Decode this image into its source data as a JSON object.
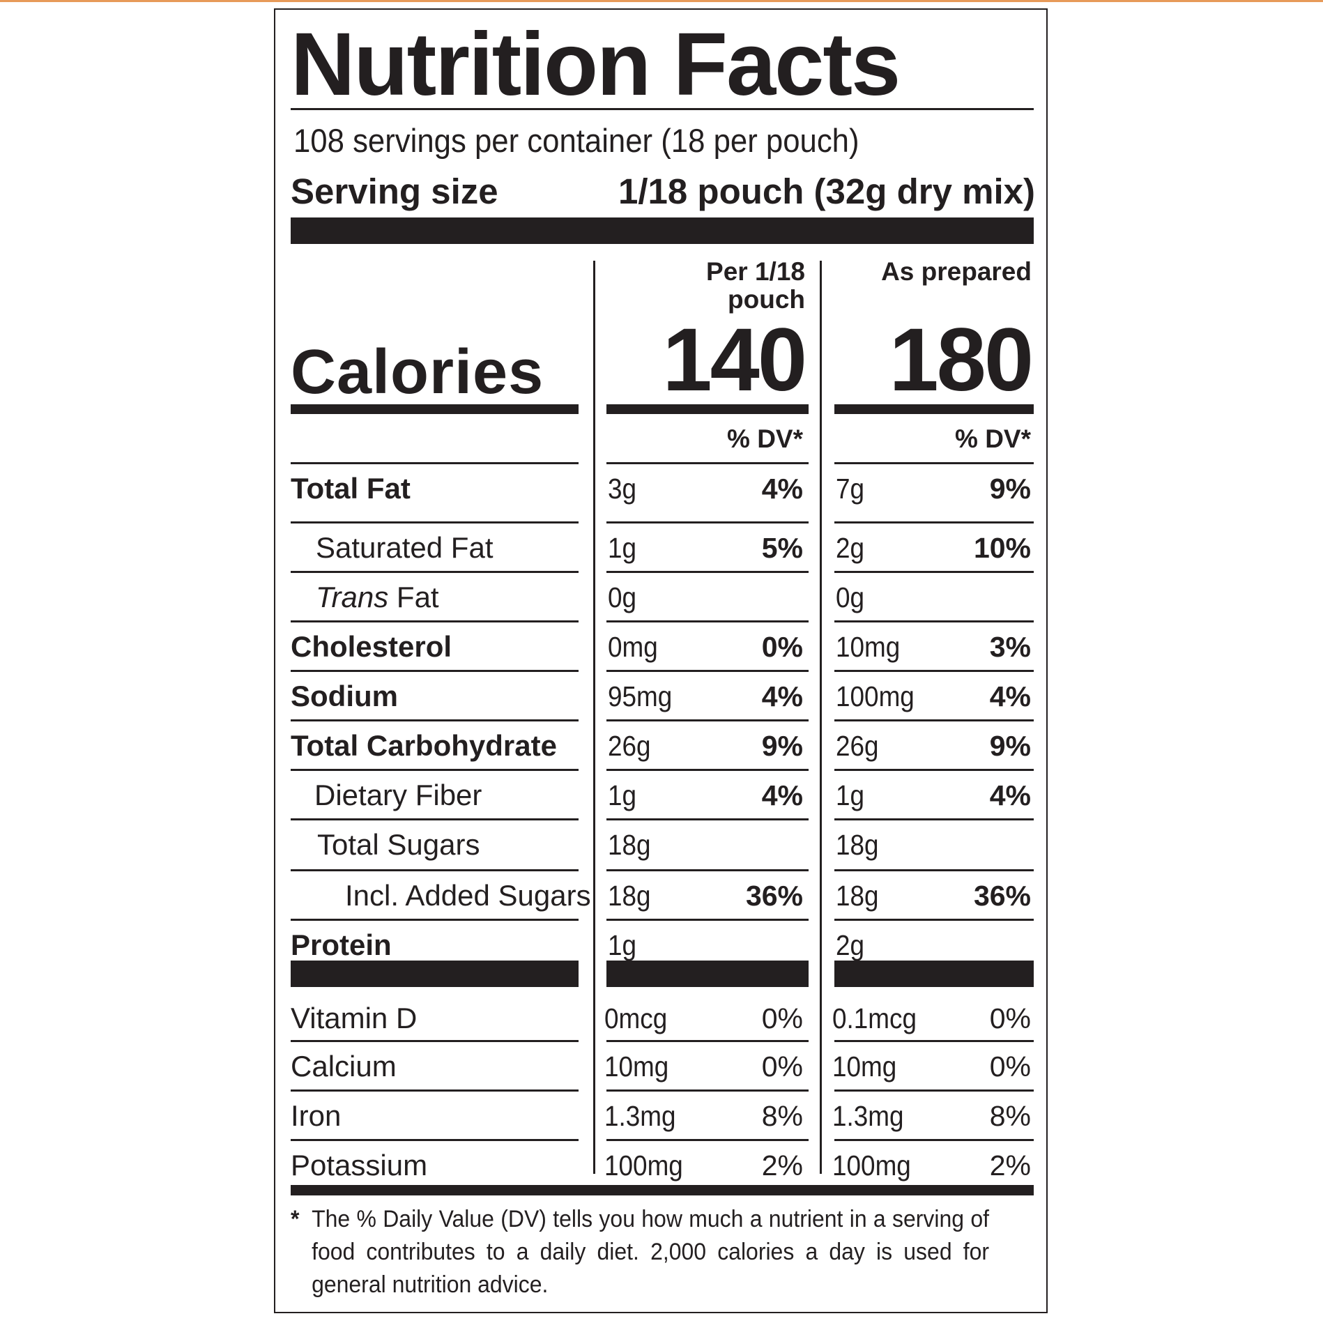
{
  "title": "Nutrition Facts",
  "servings_per_container": "108 servings per container (18 per pouch)",
  "serving_size_label": "Serving size",
  "serving_size_value": "1/18 pouch (32g dry mix)",
  "columns": {
    "col1_header_line1": "Per 1/18",
    "col1_header_line2": "pouch",
    "col2_header": "As prepared"
  },
  "calories": {
    "label": "Calories",
    "col1": "140",
    "col2": "180"
  },
  "dv_header": "% DV*",
  "nutrients": [
    {
      "name": "Total Fat",
      "col1_amount": "3g",
      "col1_dv": "4%",
      "col2_amount": "7g",
      "col2_dv": "9%"
    },
    {
      "name": "Saturated Fat",
      "col1_amount": "1g",
      "col1_dv": "5%",
      "col2_amount": "2g",
      "col2_dv": "10%"
    },
    {
      "name_italic": "Trans",
      "name_rest": " Fat",
      "col1_amount": "0g",
      "col1_dv": "",
      "col2_amount": "0g",
      "col2_dv": ""
    },
    {
      "name": "Cholesterol",
      "col1_amount": "0mg",
      "col1_dv": "0%",
      "col2_amount": "10mg",
      "col2_dv": "3%"
    },
    {
      "name": "Sodium",
      "col1_amount": "95mg",
      "col1_dv": "4%",
      "col2_amount": "100mg",
      "col2_dv": "4%"
    },
    {
      "name": "Total Carbohydrate",
      "col1_amount": "26g",
      "col1_dv": "9%",
      "col2_amount": "26g",
      "col2_dv": "9%"
    },
    {
      "name": "Dietary Fiber",
      "col1_amount": "1g",
      "col1_dv": "4%",
      "col2_amount": "1g",
      "col2_dv": "4%"
    },
    {
      "name": "Total Sugars",
      "col1_amount": "18g",
      "col1_dv": "",
      "col2_amount": "18g",
      "col2_dv": ""
    },
    {
      "name": "Incl. Added Sugars",
      "col1_amount": "18g",
      "col1_dv": "36%",
      "col2_amount": "18g",
      "col2_dv": "36%"
    },
    {
      "name": "Protein",
      "col1_amount": "1g",
      "col1_dv": "",
      "col2_amount": "2g",
      "col2_dv": ""
    }
  ],
  "micronutrients": [
    {
      "name": "Vitamin D",
      "col1_amount": "0mcg",
      "col1_dv": "0%",
      "col2_amount": "0.1mcg",
      "col2_dv": "0%"
    },
    {
      "name": "Calcium",
      "col1_amount": "10mg",
      "col1_dv": "0%",
      "col2_amount": "10mg",
      "col2_dv": "0%"
    },
    {
      "name": "Iron",
      "col1_amount": "1.3mg",
      "col1_dv": "8%",
      "col2_amount": "1.3mg",
      "col2_dv": "8%"
    },
    {
      "name": "Potassium",
      "col1_amount": "100mg",
      "col1_dv": "2%",
      "col2_amount": "100mg",
      "col2_dv": "2%"
    }
  ],
  "footnote_star": "*",
  "footnote": "The % Daily Value (DV) tells you how much a nutrient in a serving of food contributes to a daily diet. 2,000 calories a day is used for general nutrition advice.",
  "colors": {
    "ink": "#231f20",
    "top_accent": "#e79a59",
    "background": "#ffffff"
  }
}
